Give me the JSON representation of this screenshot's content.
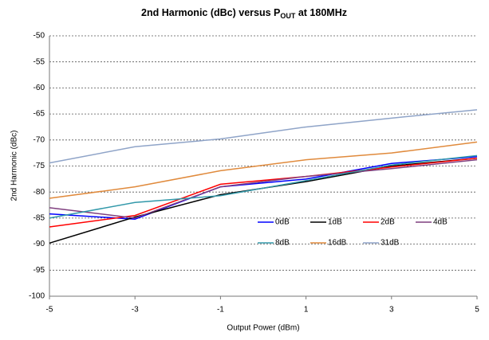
{
  "chart_data": {
    "type": "line",
    "title": [
      "2nd Harmonic (dBc) versus P",
      "OUT",
      " at 180MHz"
    ],
    "x_label": "Output Power (dBm)",
    "y_label": "2nd Harmonic (dBc)",
    "x": [
      -5,
      -3,
      -1,
      1,
      3,
      5
    ],
    "xlim": [
      -5,
      5
    ],
    "xticks": [
      -5,
      -3,
      -1,
      1,
      3,
      5
    ],
    "ylim": [
      -100,
      -50
    ],
    "yticks": [
      -100,
      -95,
      -90,
      -85,
      -80,
      -75,
      -70,
      -65,
      -60,
      -55,
      -50
    ],
    "grid": true,
    "series": [
      {
        "name": "0dB",
        "color": "#0000ff",
        "values": [
          -84.2,
          -85.2,
          -79,
          -77.5,
          -74.5,
          -73.2
        ]
      },
      {
        "name": "1dB",
        "color": "#000000",
        "values": [
          -89.8,
          -84.8,
          -80.5,
          -78,
          -75,
          -73.5
        ]
      },
      {
        "name": "2dB",
        "color": "#ff0000",
        "values": [
          -86.7,
          -84.5,
          -78.5,
          -77,
          -75.2,
          -73.5
        ]
      },
      {
        "name": "4dB",
        "color": "#7f3f7f",
        "values": [
          -83,
          -85,
          -79,
          -77,
          -75.5,
          -73.8
        ]
      },
      {
        "name": "8dB",
        "color": "#3399aa",
        "values": [
          -85,
          -82,
          -80.7,
          -77.8,
          -74.8,
          -73
        ]
      },
      {
        "name": "16dB",
        "color": "#e08a3c",
        "values": [
          -81.2,
          -79,
          -75.9,
          -73.8,
          -72.5,
          -70.4
        ]
      },
      {
        "name": "31dB",
        "color": "#8fa4c8",
        "values": [
          -74.4,
          -71.3,
          -69.8,
          -67.5,
          -65.8,
          -64.2
        ]
      }
    ]
  }
}
